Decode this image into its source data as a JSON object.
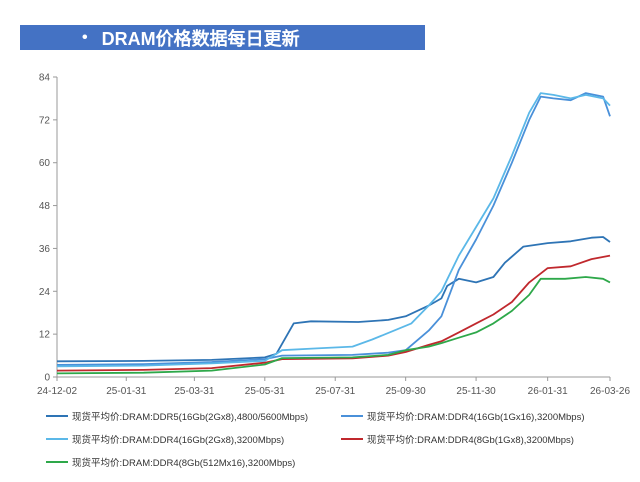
{
  "banner": {
    "bullet": "•",
    "title": "DRAM价格数据每日更新"
  },
  "chart_data": {
    "type": "line",
    "title": "DRAM价格数据每日更新",
    "xlabel": "",
    "ylabel": "",
    "x_ticks": [
      "24-12-02",
      "25-01-31",
      "25-03-31",
      "25-05-31",
      "25-07-31",
      "25-09-30",
      "25-11-30",
      "26-01-31",
      "26-03-26"
    ],
    "x_range": [
      "24-12-02",
      "26-03-26"
    ],
    "ylim": [
      0,
      84
    ],
    "y_ticks": [
      0,
      12,
      24,
      36,
      48,
      60,
      72,
      84
    ],
    "grid": false,
    "legend_position": "bottom",
    "series": [
      {
        "name": "现货平均价:DRAM:DDR5(16Gb(2Gx8),4800/5600Mbps)",
        "color": "#2e74b5",
        "points": [
          [
            "24-12-02",
            4.4
          ],
          [
            "25-02-15",
            4.5
          ],
          [
            "25-04-15",
            4.8
          ],
          [
            "25-05-31",
            5.5
          ],
          [
            "25-06-10",
            6.5
          ],
          [
            "25-06-25",
            15.0
          ],
          [
            "25-07-10",
            15.6
          ],
          [
            "25-08-20",
            15.4
          ],
          [
            "25-09-15",
            16.0
          ],
          [
            "25-09-30",
            17.0
          ],
          [
            "25-10-20",
            20.0
          ],
          [
            "25-10-31",
            22.0
          ],
          [
            "25-11-05",
            25.5
          ],
          [
            "25-11-15",
            27.5
          ],
          [
            "25-11-30",
            26.5
          ],
          [
            "25-12-15",
            28.0
          ],
          [
            "25-12-25",
            32.0
          ],
          [
            "26-01-10",
            36.5
          ],
          [
            "26-01-31",
            37.5
          ],
          [
            "26-02-20",
            38.0
          ],
          [
            "26-03-10",
            39.0
          ],
          [
            "26-03-20",
            39.2
          ],
          [
            "26-03-26",
            37.8
          ]
        ]
      },
      {
        "name": "现货平均价:DRAM:DDR4(16Gb(1Gx16),3200Mbps)",
        "color": "#4a90d9",
        "points": [
          [
            "24-12-02",
            3.4
          ],
          [
            "25-02-15",
            3.6
          ],
          [
            "25-04-15",
            4.2
          ],
          [
            "25-05-31",
            5.0
          ],
          [
            "25-06-15",
            6.0
          ],
          [
            "25-08-15",
            6.2
          ],
          [
            "25-09-15",
            6.8
          ],
          [
            "25-09-30",
            7.5
          ],
          [
            "25-10-20",
            13.0
          ],
          [
            "25-10-31",
            17.0
          ],
          [
            "25-11-15",
            30.0
          ],
          [
            "25-11-30",
            38.5
          ],
          [
            "25-12-15",
            48.0
          ],
          [
            "25-12-31",
            60.0
          ],
          [
            "26-01-15",
            72.0
          ],
          [
            "26-01-25",
            78.5
          ],
          [
            "26-02-05",
            78.0
          ],
          [
            "26-02-20",
            77.5
          ],
          [
            "26-03-05",
            79.5
          ],
          [
            "26-03-20",
            78.5
          ],
          [
            "26-03-26",
            73.0
          ]
        ]
      },
      {
        "name": "现货平均价:DRAM:DDR4(16Gb(2Gx8),3200Mbps)",
        "color": "#5bb8e8",
        "points": [
          [
            "24-12-02",
            3.0
          ],
          [
            "25-02-15",
            3.2
          ],
          [
            "25-04-15",
            3.8
          ],
          [
            "25-05-31",
            4.5
          ],
          [
            "25-06-15",
            7.5
          ],
          [
            "25-07-15",
            8.0
          ],
          [
            "25-08-15",
            8.5
          ],
          [
            "25-09-01",
            10.5
          ],
          [
            "25-09-20",
            13.0
          ],
          [
            "25-10-05",
            15.0
          ],
          [
            "25-10-20",
            20.0
          ],
          [
            "25-10-31",
            24.0
          ],
          [
            "25-11-15",
            34.0
          ],
          [
            "25-11-30",
            42.0
          ],
          [
            "25-12-15",
            50.0
          ],
          [
            "25-12-31",
            62.0
          ],
          [
            "26-01-15",
            74.0
          ],
          [
            "26-01-25",
            79.5
          ],
          [
            "26-02-05",
            79.0
          ],
          [
            "26-02-20",
            78.0
          ],
          [
            "26-03-05",
            79.0
          ],
          [
            "26-03-20",
            78.0
          ],
          [
            "26-03-26",
            76.0
          ]
        ]
      },
      {
        "name": "现货平均价:DRAM:DDR4(8Gb(1Gx8),3200Mbps)",
        "color": "#c0282d",
        "points": [
          [
            "24-12-02",
            1.8
          ],
          [
            "25-02-15",
            2.0
          ],
          [
            "25-04-15",
            2.5
          ],
          [
            "25-05-31",
            4.0
          ],
          [
            "25-06-15",
            5.0
          ],
          [
            "25-08-15",
            5.2
          ],
          [
            "25-09-15",
            6.0
          ],
          [
            "25-09-30",
            7.0
          ],
          [
            "25-10-20",
            9.0
          ],
          [
            "25-10-31",
            10.0
          ],
          [
            "25-11-15",
            12.5
          ],
          [
            "25-11-30",
            15.0
          ],
          [
            "25-12-15",
            17.5
          ],
          [
            "25-12-31",
            21.0
          ],
          [
            "26-01-15",
            26.5
          ],
          [
            "26-01-31",
            30.5
          ],
          [
            "26-02-20",
            31.0
          ],
          [
            "26-03-10",
            33.0
          ],
          [
            "26-03-26",
            34.0
          ]
        ]
      },
      {
        "name": "现货平均价:DRAM:DDR4(8Gb(512Mx16),3200Mbps)",
        "color": "#2ea84a",
        "points": [
          [
            "24-12-02",
            1.0
          ],
          [
            "25-02-15",
            1.2
          ],
          [
            "25-04-15",
            1.8
          ],
          [
            "25-05-31",
            3.5
          ],
          [
            "25-06-15",
            5.3
          ],
          [
            "25-08-15",
            5.5
          ],
          [
            "25-09-15",
            6.2
          ],
          [
            "25-09-30",
            7.5
          ],
          [
            "25-10-20",
            8.5
          ],
          [
            "25-10-31",
            9.5
          ],
          [
            "25-11-15",
            11.0
          ],
          [
            "25-11-30",
            12.5
          ],
          [
            "25-12-15",
            15.0
          ],
          [
            "25-12-31",
            18.5
          ],
          [
            "26-01-15",
            23.0
          ],
          [
            "26-01-25",
            27.5
          ],
          [
            "26-02-15",
            27.5
          ],
          [
            "26-03-05",
            28.0
          ],
          [
            "26-03-20",
            27.5
          ],
          [
            "26-03-26",
            26.5
          ]
        ]
      }
    ]
  }
}
